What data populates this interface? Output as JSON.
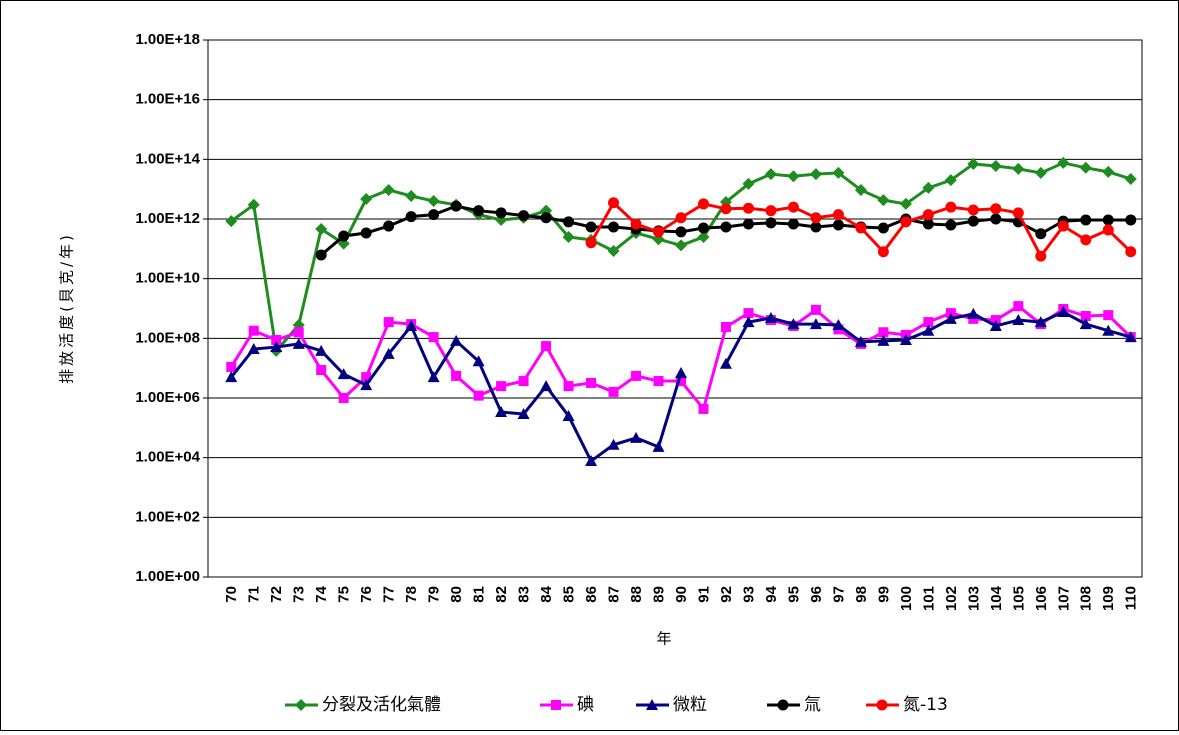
{
  "chart_data": {
    "type": "line",
    "y_scale": "log",
    "x_label": "年",
    "y_label": "排放活度(貝克/年)",
    "categories": [
      "70",
      "71",
      "72",
      "73",
      "74",
      "75",
      "76",
      "77",
      "78",
      "79",
      "80",
      "81",
      "82",
      "83",
      "84",
      "85",
      "86",
      "87",
      "88",
      "89",
      "90",
      "91",
      "92",
      "93",
      "94",
      "95",
      "96",
      "97",
      "98",
      "99",
      "100",
      "101",
      "102",
      "103",
      "104",
      "105",
      "106",
      "107",
      "108",
      "109",
      "110"
    ],
    "ylim": [
      1,
      1e+18
    ],
    "yticks": [
      {
        "value": 1,
        "label": "1.00E+00"
      },
      {
        "value": 100,
        "label": "1.00E+02"
      },
      {
        "value": 10000,
        "label": "1.00E+04"
      },
      {
        "value": 1000000,
        "label": "1.00E+06"
      },
      {
        "value": 100000000,
        "label": "1.00E+08"
      },
      {
        "value": 10000000000,
        "label": "1.00E+10"
      },
      {
        "value": 1000000000000,
        "label": "1.00E+12"
      },
      {
        "value": 100000000000000,
        "label": "1.00E+14"
      },
      {
        "value": 1e+16,
        "label": "1.00E+16"
      },
      {
        "value": 1e+18,
        "label": "1.00E+18"
      }
    ],
    "grid": true,
    "legend": "bottom",
    "series": [
      {
        "name": "分裂及活化氣體",
        "color": "#1e8c1e",
        "marker": "diamond",
        "values": [
          850000000000.0,
          3000000000000.0,
          38000000.0,
          280000000.0,
          460000000000.0,
          150000000000.0,
          4700000000000.0,
          9400000000000.0,
          5900000000000.0,
          4000000000000.0,
          3000000000000.0,
          1400000000000.0,
          930000000000.0,
          1100000000000.0,
          1900000000000.0,
          250000000000.0,
          200000000000.0,
          85000000000.0,
          340000000000.0,
          210000000000.0,
          130000000000.0,
          250000000000.0,
          3700000000000.0,
          15000000000000.0,
          32000000000000.0,
          27000000000000.0,
          32000000000000.0,
          35000000000000.0,
          9400000000000.0,
          4300000000000.0,
          3200000000000.0,
          11000000000000.0,
          20000000000000.0,
          70000000000000.0,
          60000000000000.0,
          48000000000000.0,
          35000000000000.0,
          76000000000000.0,
          52000000000000.0,
          38000000000000.0,
          22000000000000.0
        ]
      },
      {
        "name": "碘",
        "color": "#ff00ff",
        "marker": "square",
        "values": [
          11000000.0,
          180000000.0,
          88000000.0,
          160000000.0,
          8700000.0,
          1000000.0,
          5000000.0,
          350000000.0,
          300000000.0,
          110000000.0,
          5500000.0,
          1200000.0,
          2500000.0,
          3700000.0,
          55000000.0,
          2500000.0,
          3200000.0,
          1600000.0,
          5500000.0,
          3700000.0,
          3700000.0,
          430000.0,
          240000000.0,
          700000000.0,
          410000000.0,
          260000000.0,
          900000000.0,
          200000000.0,
          65000000.0,
          160000000.0,
          130000000.0,
          350000000.0,
          700000000.0,
          450000000.0,
          410000000.0,
          1200000000.0,
          300000000.0,
          960000000.0,
          560000000.0,
          600000000.0,
          110000000.0
        ]
      },
      {
        "name": "微粒",
        "color": "#000080",
        "marker": "triangle",
        "values": [
          5000000.0,
          44000000.0,
          51000000.0,
          65000000.0,
          38000000.0,
          6300000.0,
          2700000.0,
          30000000.0,
          260000000.0,
          5000000.0,
          82000000.0,
          17000000.0,
          340000.0,
          290000.0,
          2500000.0,
          250000.0,
          7700,
          27000,
          46000,
          23000,
          6900000.0,
          null,
          14000000.0,
          350000000.0,
          480000000.0,
          300000000.0,
          300000000.0,
          280000000.0,
          76000000.0,
          82000000.0,
          88000000.0,
          180000000.0,
          450000000.0,
          660000000.0,
          260000000.0,
          410000000.0,
          350000000.0,
          760000000.0,
          300000000.0,
          180000000.0,
          110000000.0
        ]
      },
      {
        "name": "氚",
        "color": "#000000",
        "marker": "circle",
        "values": [
          null,
          null,
          null,
          null,
          62000000000.0,
          270000000000.0,
          340000000000.0,
          580000000000.0,
          1200000000000.0,
          1400000000000.0,
          2700000000000.0,
          1900000000000.0,
          1600000000000.0,
          1300000000000.0,
          1100000000000.0,
          800000000000.0,
          540000000000.0,
          540000000000.0,
          460000000000.0,
          400000000000.0,
          370000000000.0,
          500000000000.0,
          540000000000.0,
          680000000000.0,
          740000000000.0,
          680000000000.0,
          540000000000.0,
          630000000000.0,
          540000000000.0,
          500000000000.0,
          1000000000000.0,
          680000000000.0,
          630000000000.0,
          850000000000.0,
          1000000000000.0,
          800000000000.0,
          320000000000.0,
          850000000000.0,
          930000000000.0,
          930000000000.0,
          930000000000.0
        ]
      },
      {
        "name": "氮-13",
        "color": "#ff0000",
        "marker": "circle",
        "values": [
          null,
          null,
          null,
          null,
          null,
          null,
          null,
          null,
          null,
          null,
          null,
          null,
          null,
          null,
          null,
          null,
          160000000000.0,
          3500000000000.0,
          680000000000.0,
          370000000000.0,
          1100000000000.0,
          3200000000000.0,
          2200000000000.0,
          2300000000000.0,
          1900000000000.0,
          2500000000000.0,
          1100000000000.0,
          1400000000000.0,
          500000000000.0,
          80000000000.0,
          800000000000.0,
          1400000000000.0,
          2500000000000.0,
          2000000000000.0,
          2200000000000.0,
          1600000000000.0,
          57000000000.0,
          580000000000.0,
          200000000000.0,
          430000000000.0,
          80000000000.0
        ]
      }
    ]
  }
}
